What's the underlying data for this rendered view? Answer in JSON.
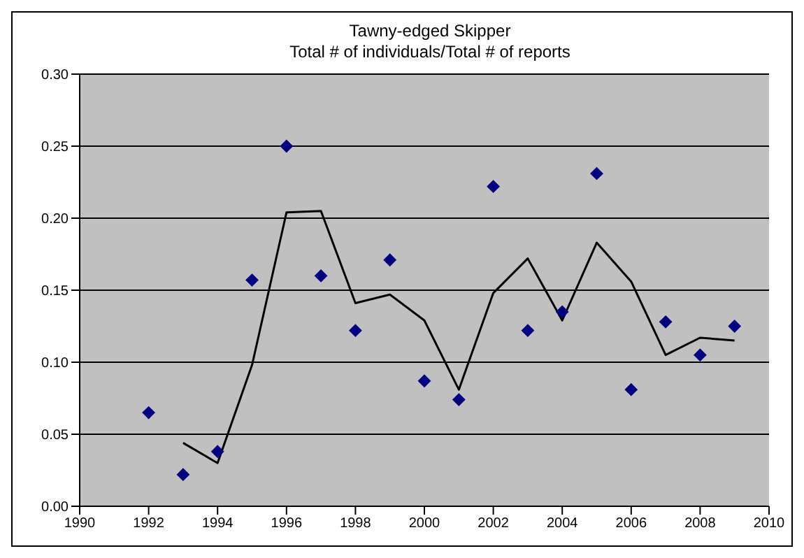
{
  "chart_data": {
    "type": "scatter",
    "title": "Tawny-edged Skipper",
    "subtitle": "Total # of individuals/Total # of reports",
    "x": [
      1992,
      1993,
      1994,
      1995,
      1996,
      1997,
      1998,
      1999,
      2000,
      2001,
      2002,
      2003,
      2004,
      2005,
      2006,
      2007,
      2008,
      2009
    ],
    "series": [
      {
        "color": "#000080",
        "marker": "diamond",
        "values": [
          0.065,
          0.022,
          0.038,
          0.157,
          0.25,
          0.16,
          0.122,
          0.171,
          0.087,
          0.074,
          0.222,
          0.122,
          0.135,
          0.231,
          0.081,
          0.128,
          0.105,
          0.125
        ]
      },
      {
        "type": "line",
        "color": "#000000",
        "marker": "none",
        "line_style": "solid",
        "x": [
          1993,
          1994,
          1995,
          1996,
          1997,
          1998,
          1999,
          2000,
          2001,
          2002,
          2003,
          2004,
          2005,
          2006,
          2007,
          2008,
          2009
        ],
        "values": [
          0.044,
          0.03,
          0.098,
          0.204,
          0.205,
          0.141,
          0.147,
          0.129,
          0.081,
          0.148,
          0.172,
          0.129,
          0.183,
          0.156,
          0.105,
          0.117,
          0.115
        ]
      }
    ],
    "xlim": [
      1990,
      2010
    ],
    "xticks": [
      1990,
      1992,
      1994,
      1996,
      1998,
      2000,
      2002,
      2004,
      2006,
      2008,
      2010
    ],
    "ylim": [
      0,
      0.3
    ],
    "yticks": [
      {
        "value": 0,
        "label": "0.00"
      },
      {
        "value": 0.05,
        "label": "0.05"
      },
      {
        "value": 0.1,
        "label": "0.10"
      },
      {
        "value": 0.15,
        "label": "0.15"
      },
      {
        "value": 0.2,
        "label": "0.20"
      },
      {
        "value": 0.25,
        "label": "0.25"
      },
      {
        "value": 0.3,
        "label": "0.30"
      }
    ],
    "grid": "y",
    "legend": false
  }
}
